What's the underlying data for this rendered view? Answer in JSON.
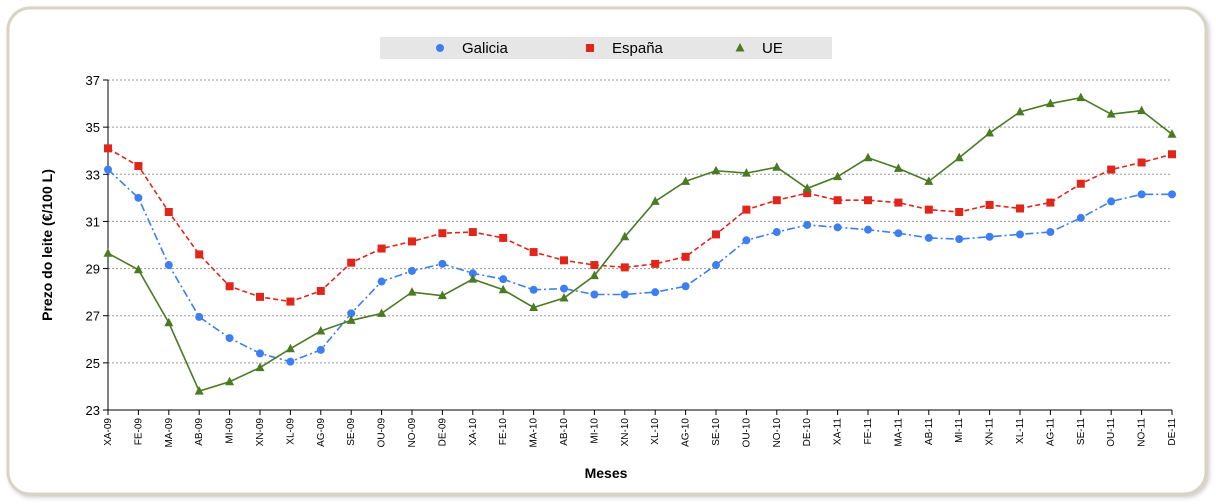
{
  "chart_data": {
    "type": "line",
    "x_label": "Meses",
    "y_label": "Prezo do leite (€/100 L)",
    "categories": [
      "XA-09",
      "FE-09",
      "MA-09",
      "AB-09",
      "MI-09",
      "XN-09",
      "XL-09",
      "AG-09",
      "SE-09",
      "OU-09",
      "NO-09",
      "DE-09",
      "XA-10",
      "FE-10",
      "MA-10",
      "AB-10",
      "MI-10",
      "XN-10",
      "XL-10",
      "AG-10",
      "SE-10",
      "OU-10",
      "NO-10",
      "DE-10",
      "XA-11",
      "FE-11",
      "MA-11",
      "AB-11",
      "MI-11",
      "XN-11",
      "XL-11",
      "AG-11",
      "SE-11",
      "OU-11",
      "NO-11",
      "DE-11"
    ],
    "series": [
      {
        "name": "Galicia",
        "color": "#3d7ef0",
        "line_style": "dashdot",
        "marker": "circle",
        "values": [
          33.2,
          32.0,
          29.15,
          26.95,
          26.05,
          25.4,
          25.05,
          25.55,
          27.1,
          28.45,
          28.9,
          29.2,
          28.8,
          28.55,
          28.1,
          28.15,
          27.9,
          27.9,
          28.0,
          28.25,
          29.15,
          30.2,
          30.55,
          30.85,
          30.75,
          30.65,
          30.5,
          30.3,
          30.25,
          30.35,
          30.45,
          30.55,
          31.15,
          31.85,
          32.15,
          32.15
        ]
      },
      {
        "name": "España",
        "color": "#e0261b",
        "line_style": "dashed",
        "marker": "square",
        "values": [
          34.1,
          33.35,
          31.4,
          29.6,
          28.25,
          27.8,
          27.6,
          28.05,
          29.25,
          29.85,
          30.15,
          30.5,
          30.55,
          30.3,
          29.7,
          29.35,
          29.15,
          29.05,
          29.2,
          29.5,
          30.45,
          31.5,
          31.9,
          32.2,
          31.9,
          31.9,
          31.8,
          31.5,
          31.4,
          31.7,
          31.55,
          31.8,
          32.6,
          33.2,
          33.5,
          33.85
        ]
      },
      {
        "name": "UE",
        "color": "#4a7a23",
        "line_style": "solid",
        "marker": "triangle",
        "values": [
          29.65,
          28.95,
          26.7,
          23.8,
          24.2,
          24.8,
          25.6,
          26.35,
          26.8,
          27.1,
          28.0,
          27.85,
          28.55,
          28.1,
          27.35,
          27.75,
          28.7,
          30.35,
          31.85,
          32.7,
          33.15,
          33.05,
          33.3,
          32.4,
          32.9,
          33.7,
          33.25,
          32.7,
          33.7,
          34.75,
          35.65,
          36.0,
          36.25,
          35.55,
          35.7,
          34.7
        ]
      }
    ],
    "ylim": [
      23,
      37
    ],
    "yticks": [
      23,
      25,
      27,
      29,
      31,
      33,
      35,
      37
    ],
    "grid": true,
    "legend": "top"
  }
}
